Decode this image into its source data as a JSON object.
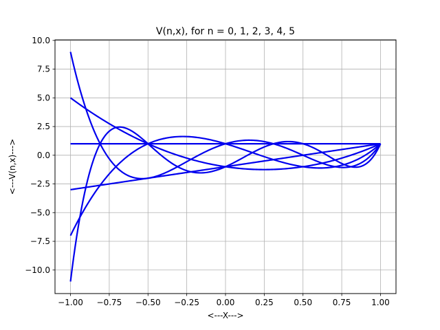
{
  "chart_data": {
    "type": "line",
    "title": "V(n,x), for n = 0, 1, 2, 3, 4, 5",
    "xlabel": "<---X--->",
    "ylabel": "<---V(n,x)--->",
    "xlim": [
      -1.1,
      1.1
    ],
    "ylim": [
      -12.05,
      10.05
    ],
    "xticks": [
      -1.0,
      -0.75,
      -0.5,
      -0.25,
      0.0,
      0.25,
      0.5,
      0.75,
      1.0
    ],
    "xtick_labels": [
      "−1.00",
      "−0.75",
      "−0.50",
      "−0.25",
      "0.00",
      "0.25",
      "0.50",
      "0.75",
      "1.00"
    ],
    "yticks": [
      -10.0,
      -7.5,
      -5.0,
      -2.5,
      0.0,
      2.5,
      5.0,
      7.5,
      10.0
    ],
    "ytick_labels": [
      "−10.0",
      "−7.5",
      "−5.0",
      "−2.5",
      "0.0",
      "2.5",
      "5.0",
      "7.5",
      "10.0"
    ],
    "grid": true,
    "line_color": "#0000ee",
    "x_range": [
      -1.0,
      1.0
    ],
    "series": [
      {
        "n": 0
      },
      {
        "n": 1
      },
      {
        "n": 2
      },
      {
        "n": 3
      },
      {
        "n": 4
      },
      {
        "n": 5
      }
    ]
  }
}
